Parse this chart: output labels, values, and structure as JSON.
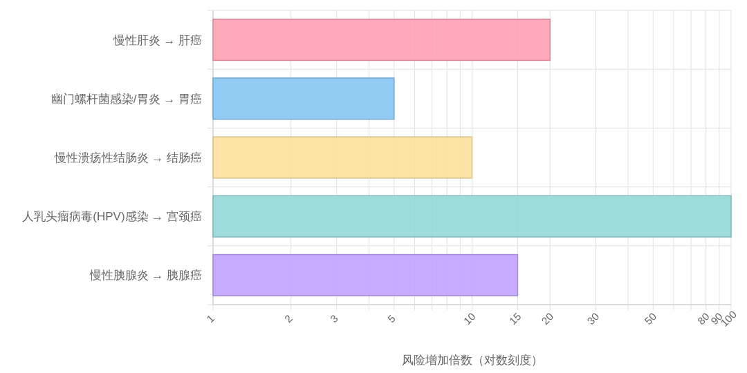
{
  "chart_data": {
    "type": "bar",
    "orientation": "horizontal",
    "log": "x",
    "xlabel": "风险增加倍数（对数刻度）",
    "categories": [
      "慢性肝炎 → 肝癌",
      "幽门螺杆菌感染/胃炎 → 胃癌",
      "慢性溃疡性结肠炎 → 结肠癌",
      "人乳头瘤病毒(HPV)感染 → 宫颈癌",
      "慢性胰腺炎 → 胰腺癌"
    ],
    "values": [
      20,
      5,
      10,
      100,
      15
    ],
    "colors": [
      "#ffa0b3",
      "#86c5f2",
      "#fde09c",
      "#95d9d9",
      "#c1a2fe"
    ],
    "xlim": [
      1,
      100
    ],
    "xticks": [
      1,
      2,
      3,
      {
        "value": 4,
        "label": null
      },
      5,
      {
        "value": 6,
        "label": null
      },
      {
        "value": 7,
        "label": null
      },
      {
        "value": 8,
        "label": null
      },
      {
        "value": 9,
        "label": null
      },
      10,
      15,
      20,
      30,
      {
        "value": 40,
        "label": null
      },
      50,
      {
        "value": 60,
        "label": null
      },
      {
        "value": 70,
        "label": null
      },
      80,
      90,
      100
    ],
    "grid": true
  }
}
